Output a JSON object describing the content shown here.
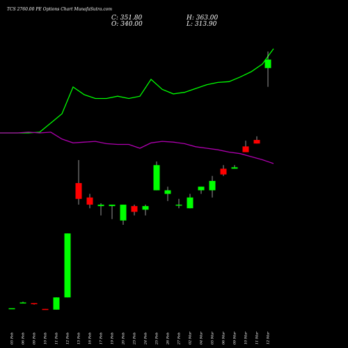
{
  "header": {
    "title": "TCS 2760.00 PE Options  Chart MunafaSutra.com",
    "close": "C: 351.80",
    "high": "H: 363.00",
    "open": "O: 340.00",
    "low": "L: 313.90"
  },
  "colors": {
    "background": "#000000",
    "up": "#00ff00",
    "down": "#ff0000",
    "upper_line": "#00ff00",
    "lower_line": "#b000b0",
    "wick": "#ffffff"
  },
  "chart_data": {
    "type": "candlestick",
    "ylim": [
      0,
      363
    ],
    "categories": [
      "05 Feb",
      "06 Feb",
      "09 Feb",
      "10 Feb",
      "11 Feb",
      "12 Feb",
      "13 Feb",
      "16 Feb",
      "17 Feb",
      "19 Feb",
      "20 Feb",
      "23 Feb",
      "24 Feb",
      "25 Feb",
      "26 Feb",
      "27 Feb",
      "02 Mar",
      "04 Mar",
      "05 Mar",
      "06 Mar",
      "09 Mar",
      "10 Mar",
      "11 Mar",
      "12 Mar"
    ],
    "candles": [
      {
        "o": 6,
        "h": 6,
        "l": 6,
        "c": 6
      },
      {
        "o": 14,
        "h": 15,
        "l": 13,
        "c": 14
      },
      {
        "o": 13,
        "h": 13,
        "l": 11,
        "c": 12
      },
      {
        "o": 5,
        "h": 5,
        "l": 4,
        "c": 4
      },
      {
        "o": 4,
        "h": 21,
        "l": 4,
        "c": 21
      },
      {
        "o": 21,
        "h": 110,
        "l": 21,
        "c": 110
      },
      {
        "o": 180,
        "h": 212,
        "l": 150,
        "c": 158
      },
      {
        "o": 160,
        "h": 165,
        "l": 145,
        "c": 150
      },
      {
        "o": 148,
        "h": 152,
        "l": 135,
        "c": 150
      },
      {
        "o": 148,
        "h": 150,
        "l": 130,
        "c": 150
      },
      {
        "o": 128,
        "h": 150,
        "l": 122,
        "c": 150
      },
      {
        "o": 148,
        "h": 150,
        "l": 135,
        "c": 140
      },
      {
        "o": 143,
        "h": 150,
        "l": 135,
        "c": 148
      },
      {
        "o": 170,
        "h": 210,
        "l": 170,
        "c": 205
      },
      {
        "o": 165,
        "h": 175,
        "l": 155,
        "c": 170
      },
      {
        "o": 150,
        "h": 158,
        "l": 145,
        "c": 150
      },
      {
        "o": 145,
        "h": 165,
        "l": 145,
        "c": 160
      },
      {
        "o": 170,
        "h": 175,
        "l": 165,
        "c": 175
      },
      {
        "o": 170,
        "h": 190,
        "l": 160,
        "c": 183
      },
      {
        "o": 200,
        "h": 205,
        "l": 190,
        "c": 192
      },
      {
        "o": 200,
        "h": 205,
        "l": 200,
        "c": 202
      },
      {
        "o": 231,
        "h": 239,
        "l": 225,
        "c": 223
      },
      {
        "o": 240,
        "h": 245,
        "l": 235,
        "c": 235
      },
      {
        "o": 340,
        "h": 363,
        "l": 313.9,
        "c": 351.8
      }
    ],
    "upper_band": [
      455,
      455,
      456,
      468,
      480,
      515,
      505,
      500,
      500,
      503,
      500,
      503,
      525,
      512,
      506,
      508,
      513,
      518,
      521,
      522,
      528,
      535,
      545,
      565
    ],
    "lower_band": [
      455,
      456,
      455,
      456,
      447,
      442,
      443,
      444,
      441,
      440,
      440,
      435,
      442,
      444,
      443,
      441,
      437,
      435,
      433,
      430,
      428,
      424,
      420,
      415
    ]
  }
}
